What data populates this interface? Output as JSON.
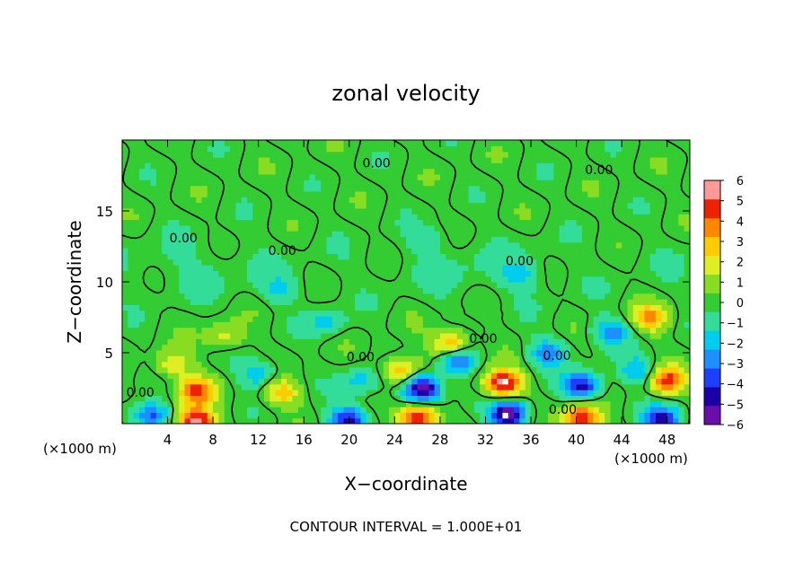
{
  "chart_data": {
    "type": "heatmap",
    "title": "zonal velocity",
    "xlabel": "X−coordinate",
    "ylabel": "Z−coordinate",
    "x_unit_left": "(×1000 m)",
    "x_unit_right": "(×1000 m)",
    "footer": "CONTOUR INTERVAL = 1.000E+01",
    "xlim": [
      0,
      50
    ],
    "ylim": [
      0,
      20
    ],
    "x_ticks": [
      4,
      8,
      12,
      16,
      20,
      24,
      28,
      32,
      36,
      40,
      44,
      48
    ],
    "y_ticks": [
      5,
      10,
      15
    ],
    "colorbar": {
      "min": -6,
      "max": 6,
      "ticks": [
        6,
        5,
        4,
        3,
        2,
        1,
        0,
        -1,
        -2,
        -3,
        -4,
        -5,
        -6
      ],
      "tick_labels": [
        "6",
        "5",
        "4",
        "3",
        "2",
        "1",
        "0",
        "−1",
        "−2",
        "−3",
        "−4",
        "−5",
        "−6"
      ],
      "colors": [
        "#6a0dad",
        "#1b00a8",
        "#1f3fff",
        "#1e8fff",
        "#00ccee",
        "#33dd99",
        "#33cc33",
        "#88dd22",
        "#ddee22",
        "#ffcc00",
        "#ff8800",
        "#ee2200",
        "#ff9999"
      ]
    },
    "contour_labels": [
      {
        "text": "0.00",
        "x": 22.4,
        "y": 18.4
      },
      {
        "text": "0.00",
        "x": 42.0,
        "y": 17.9
      },
      {
        "text": "0.00",
        "x": 5.4,
        "y": 13.1
      },
      {
        "text": "0.00",
        "x": 14.1,
        "y": 12.2
      },
      {
        "text": "0.00",
        "x": 35.0,
        "y": 11.5
      },
      {
        "text": "0.00",
        "x": 31.8,
        "y": 6.0
      },
      {
        "text": "0.00",
        "x": 21.0,
        "y": 4.7
      },
      {
        "text": "0.00",
        "x": 38.3,
        "y": 4.8
      },
      {
        "text": "0.00",
        "x": 1.6,
        "y": 2.2
      },
      {
        "text": "0.00",
        "x": 38.8,
        "y": 1.0
      }
    ],
    "anomalies": [
      {
        "x": 6.5,
        "y": 2.3,
        "value": 4.8
      },
      {
        "x": 14.0,
        "y": 2.2,
        "value": 3.0
      },
      {
        "x": 12.0,
        "y": 3.5,
        "value": -2.5
      },
      {
        "x": 21.0,
        "y": 3.0,
        "value": -2.0
      },
      {
        "x": 24.5,
        "y": 3.8,
        "value": 3.5
      },
      {
        "x": 26.5,
        "y": 2.5,
        "value": -6.5
      },
      {
        "x": 29.5,
        "y": 4.5,
        "value": -4.0
      },
      {
        "x": 29.0,
        "y": 5.6,
        "value": 4.0
      },
      {
        "x": 33.5,
        "y": 2.9,
        "value": 6.5
      },
      {
        "x": 34.0,
        "y": 0.7,
        "value": -6.5
      },
      {
        "x": 37.5,
        "y": 5.0,
        "value": -3.0
      },
      {
        "x": 40.5,
        "y": 2.7,
        "value": -5.0
      },
      {
        "x": 43.0,
        "y": 6.5,
        "value": -3.0
      },
      {
        "x": 46.5,
        "y": 7.5,
        "value": 3.5
      },
      {
        "x": 48.0,
        "y": 3.1,
        "value": 4.8
      },
      {
        "x": 45.5,
        "y": 3.8,
        "value": -2.5
      },
      {
        "x": 26.0,
        "y": 0.4,
        "value": 6.5
      },
      {
        "x": 20.0,
        "y": 0.3,
        "value": -5.0
      },
      {
        "x": 6.5,
        "y": 0.2,
        "value": 6.5
      },
      {
        "x": 2.5,
        "y": 0.6,
        "value": -4.0
      },
      {
        "x": 40.5,
        "y": 0.4,
        "value": 6.0
      },
      {
        "x": 47.5,
        "y": 0.3,
        "value": -5.0
      },
      {
        "x": 4.5,
        "y": 4.2,
        "value": 2.5
      },
      {
        "x": 35.0,
        "y": 10.5,
        "value": -1.5
      },
      {
        "x": 14.0,
        "y": 9.5,
        "value": -1.5
      },
      {
        "x": 18.0,
        "y": 7.2,
        "value": -1.8
      },
      {
        "x": 27.0,
        "y": 13.0,
        "value": -1.0
      },
      {
        "x": 9.0,
        "y": 6.2,
        "value": 2.0
      }
    ]
  }
}
